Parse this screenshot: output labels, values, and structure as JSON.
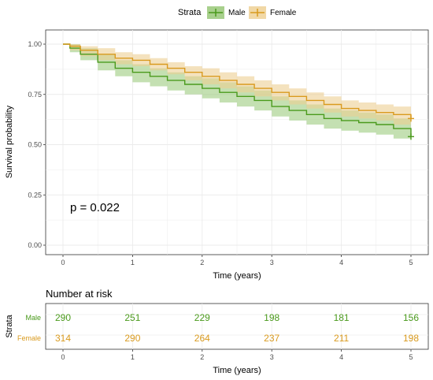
{
  "legend": {
    "title": "Strata",
    "entries": [
      {
        "label": "Male",
        "color": "#4a9a1c"
      },
      {
        "label": "Female",
        "color": "#d99a1e"
      }
    ]
  },
  "chart_data": {
    "type": "line",
    "subtype": "kaplan-meier",
    "ylabel": "Survival probability",
    "xlabel": "Time (years)",
    "xlim": [
      0,
      5
    ],
    "ylim": [
      0,
      1
    ],
    "x_ticks": [
      "0",
      "1",
      "2",
      "3",
      "4",
      "5"
    ],
    "y_ticks": [
      "0.00",
      "0.25",
      "0.50",
      "0.75",
      "1.00"
    ],
    "annotation": "p = 0.022",
    "grid": true,
    "legend_position": "top",
    "series": [
      {
        "name": "Male",
        "color": "#4a9a1c",
        "x": [
          0,
          0.1,
          0.25,
          0.5,
          0.75,
          1.0,
          1.25,
          1.5,
          1.75,
          2.0,
          2.25,
          2.5,
          2.75,
          3.0,
          3.25,
          3.5,
          3.75,
          4.0,
          4.25,
          4.5,
          4.75,
          5.0
        ],
        "y": [
          1.0,
          0.98,
          0.95,
          0.91,
          0.88,
          0.86,
          0.84,
          0.82,
          0.8,
          0.78,
          0.76,
          0.74,
          0.72,
          0.69,
          0.67,
          0.65,
          0.63,
          0.62,
          0.61,
          0.6,
          0.58,
          0.54
        ],
        "lower": [
          1.0,
          0.96,
          0.92,
          0.87,
          0.84,
          0.81,
          0.79,
          0.77,
          0.75,
          0.73,
          0.71,
          0.69,
          0.67,
          0.64,
          0.62,
          0.6,
          0.58,
          0.57,
          0.56,
          0.55,
          0.53,
          0.49
        ],
        "upper": [
          1.0,
          1.0,
          0.98,
          0.95,
          0.92,
          0.9,
          0.88,
          0.86,
          0.84,
          0.83,
          0.81,
          0.79,
          0.77,
          0.74,
          0.72,
          0.7,
          0.68,
          0.67,
          0.66,
          0.65,
          0.63,
          0.59
        ]
      },
      {
        "name": "Female",
        "color": "#d99a1e",
        "x": [
          0,
          0.1,
          0.25,
          0.5,
          0.75,
          1.0,
          1.25,
          1.5,
          1.75,
          2.0,
          2.25,
          2.5,
          2.75,
          3.0,
          3.25,
          3.5,
          3.75,
          4.0,
          4.25,
          4.5,
          4.75,
          5.0
        ],
        "y": [
          1.0,
          0.99,
          0.97,
          0.95,
          0.93,
          0.92,
          0.9,
          0.88,
          0.86,
          0.84,
          0.82,
          0.8,
          0.78,
          0.76,
          0.74,
          0.72,
          0.7,
          0.68,
          0.67,
          0.66,
          0.65,
          0.63
        ],
        "lower": [
          1.0,
          0.97,
          0.94,
          0.92,
          0.9,
          0.89,
          0.87,
          0.85,
          0.82,
          0.8,
          0.78,
          0.76,
          0.74,
          0.72,
          0.7,
          0.68,
          0.66,
          0.64,
          0.63,
          0.62,
          0.6,
          0.58
        ],
        "upper": [
          1.0,
          1.0,
          0.99,
          0.98,
          0.96,
          0.95,
          0.93,
          0.91,
          0.89,
          0.88,
          0.86,
          0.84,
          0.82,
          0.8,
          0.78,
          0.76,
          0.74,
          0.72,
          0.71,
          0.7,
          0.69,
          0.68
        ]
      }
    ]
  },
  "risk_table": {
    "title": "Number at risk",
    "ylabel": "Strata",
    "xlabel": "Time (years)",
    "x_ticks": [
      "0",
      "1",
      "2",
      "3",
      "4",
      "5"
    ],
    "rows": [
      {
        "label": "Male",
        "color": "#4a9a1c",
        "values": [
          "290",
          "251",
          "229",
          "198",
          "181",
          "156"
        ]
      },
      {
        "label": "Female",
        "color": "#d99a1e",
        "values": [
          "314",
          "290",
          "264",
          "237",
          "211",
          "198"
        ]
      }
    ]
  }
}
